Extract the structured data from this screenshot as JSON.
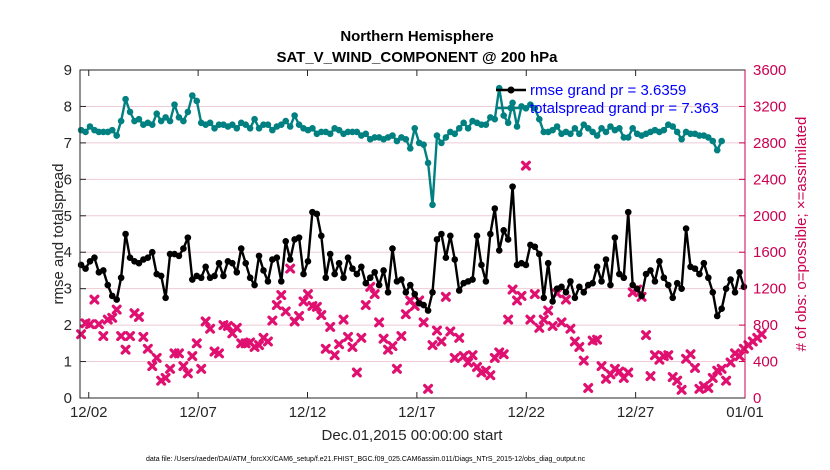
{
  "chart_data": {
    "type": "line",
    "title": "Northern Hemisphere",
    "subtitle": "SAT_V_WIND_COMPONENT @ 200 hPa",
    "xlabel": "Dec.01,2015 00:00:00 start",
    "ylabel_left": "rmse and totalspread",
    "ylabel_right": "# of obs: o=possible; ×=assimilated",
    "footnote": "data file: /Users/raeder/DAI/ATM_forcXX/CAM6_setup/f.e21.FHIST_BGC.f09_025.CAM6assim.011/Diags_NTrS_2015-12/obs_diag_output.nc",
    "xlim": [
      0.6,
      31.0
    ],
    "ylim_left": [
      0,
      9
    ],
    "ylim_right": [
      0,
      3600
    ],
    "x_ticks": [
      1,
      6,
      11,
      16,
      21,
      26,
      31
    ],
    "x_tick_labels": [
      "12/02",
      "12/07",
      "12/12",
      "12/17",
      "12/22",
      "12/27",
      "01/01"
    ],
    "y_ticks_left": [
      "0",
      "1",
      "2",
      "3",
      "4",
      "5",
      "6",
      "7",
      "8",
      "9"
    ],
    "y_ticks_right": [
      "0",
      "400",
      "800",
      "1200",
      "1600",
      "2000",
      "2400",
      "2800",
      "3200",
      "3600"
    ],
    "legend": [
      {
        "label": "rmse grand pr = 3.6359",
        "color": "#000000"
      },
      {
        "label": "totalspread grand pr = 7.363",
        "color": "#008080"
      }
    ],
    "series": [
      {
        "name": "rmse",
        "axis": "left",
        "color": "#000000",
        "values": [
          3.65,
          3.55,
          3.75,
          3.85,
          3.45,
          3.5,
          3.1,
          2.8,
          2.7,
          3.3,
          4.5,
          3.85,
          3.75,
          3.7,
          3.8,
          3.85,
          4,
          3.4,
          3.35,
          2.75,
          3.95,
          3.95,
          3.9,
          4.1,
          4.4,
          3.25,
          3.35,
          3.3,
          3.6,
          3.3,
          3.35,
          3.7,
          3.35,
          3.75,
          3.7,
          3.45,
          4.1,
          3.7,
          3.3,
          3.1,
          3.9,
          3.5,
          3.2,
          3.8,
          3.85,
          3.2,
          4.3,
          3.8,
          4.35,
          4.4,
          3.4,
          3.75,
          5.1,
          5.05,
          4.45,
          3.3,
          3.95,
          3.4,
          3.7,
          3.3,
          3.85,
          3.55,
          3.4,
          3.6,
          3.15,
          3.3,
          3.45,
          3.1,
          3.5,
          2.9,
          4.1,
          3.2,
          3.25,
          2.9,
          3.1,
          2.85,
          2.6,
          2.55,
          2.4,
          2.9,
          4.35,
          4.5,
          3.85,
          4.45,
          3.8,
          2.95,
          3.15,
          3.2,
          3.25,
          4.45,
          3.65,
          3.2,
          4.5,
          5.2,
          4.05,
          4.6,
          4.35,
          5.8,
          3.65,
          3.7,
          3.65,
          4.2,
          4.15,
          3.95,
          2.75,
          3.7,
          2.65,
          3,
          3.05,
          2.9,
          3.2,
          2.75,
          3.05,
          2.9,
          3.1,
          3.15,
          3.6,
          3.2,
          3.8,
          3.1,
          4.4,
          3.4,
          3.3,
          5.1,
          3.1,
          3,
          2.8,
          3.4,
          3.5,
          3.2,
          3.75,
          3.3,
          3.1,
          2.75,
          3.15,
          3,
          4.65,
          3.6,
          3.55,
          3.4,
          3.7,
          3.3,
          2.9,
          2.25,
          2.45,
          3,
          3.25,
          2.9,
          3.45,
          3.05
        ]
      },
      {
        "name": "totalspread",
        "axis": "left",
        "color": "#008080",
        "values": [
          7.35,
          7.3,
          7.45,
          7.35,
          7.3,
          7.3,
          7.3,
          7.35,
          7.2,
          7.6,
          8.2,
          7.85,
          7.6,
          7.65,
          7.5,
          7.55,
          7.5,
          7.8,
          7.6,
          7.7,
          7.6,
          8.05,
          7.7,
          7.6,
          7.85,
          8.3,
          8.15,
          7.55,
          7.5,
          7.55,
          7.4,
          7.5,
          7.5,
          7.45,
          7.5,
          7.4,
          7.55,
          7.5,
          7.4,
          7.65,
          7.4,
          7.5,
          7.5,
          7.35,
          7.45,
          7.5,
          7.6,
          7.45,
          7.75,
          7.5,
          7.4,
          7.35,
          7.4,
          7.25,
          7.3,
          7.3,
          7.25,
          7.4,
          7.35,
          7.25,
          7.3,
          7.3,
          7.3,
          7.2,
          7.25,
          7.1,
          7.15,
          7.15,
          7.1,
          7.15,
          7.2,
          7.05,
          7.15,
          7.1,
          6.85,
          7.4,
          7,
          6.95,
          6.45,
          5.3,
          7.2,
          7,
          7.15,
          7.3,
          7.25,
          7.4,
          7.55,
          7.4,
          7.6,
          7.55,
          7.5,
          7.5,
          7.7,
          7.65,
          8.5,
          7.75,
          7.55,
          8.1,
          7.45,
          8,
          7.95,
          8.05,
          7.95,
          7.65,
          7.3,
          7.3,
          7.35,
          7.45,
          7.25,
          7.3,
          7.25,
          7.4,
          7.25,
          7.5,
          7.4,
          7.3,
          7.2,
          7.4,
          7.3,
          7.45,
          7.35,
          7.4,
          7.15,
          7.15,
          7.4,
          7.25,
          7.2,
          7.25,
          7.3,
          7.35,
          7.3,
          7.35,
          7.5,
          7.45,
          7.3,
          7.1,
          7.3,
          7.25,
          7.25,
          7.2,
          7.2,
          7.15,
          7.05,
          6.8,
          7.05
        ]
      },
      {
        "name": "obs_assimilated",
        "axis": "right",
        "marker": "x",
        "color": "#e01070",
        "values": [
          700,
          820,
          810,
          1080,
          810,
          680,
          860,
          880,
          970,
          680,
          530,
          680,
          930,
          890,
          670,
          540,
          350,
          440,
          190,
          220,
          320,
          490,
          490,
          350,
          270,
          460,
          600,
          320,
          840,
          760,
          510,
          490,
          800,
          790,
          710,
          770,
          600,
          600,
          610,
          560,
          580,
          660,
          620,
          850,
          1020,
          1130,
          950,
          1420,
          840,
          900,
          1060,
          1140,
          1010,
          1000,
          910,
          540,
          780,
          470,
          590,
          860,
          670,
          560,
          280,
          660,
          1020,
          1220,
          1140,
          830,
          650,
          530,
          570,
          320,
          680,
          920,
          1070,
          1010,
          1070,
          830,
          100,
          580,
          740,
          620,
          1110,
          730,
          440,
          660,
          460,
          390,
          470,
          340,
          280,
          300,
          250,
          440,
          500,
          480,
          860,
          1190,
          1070,
          1120,
          2550,
          860,
          1140,
          770,
          860,
          960,
          790,
          1150,
          830,
          1080,
          760,
          620,
          560,
          410,
          110,
          630,
          640,
          350,
          210,
          260,
          320,
          290,
          220,
          280,
          1160,
          1190,
          1110,
          690,
          240,
          470,
          420,
          460,
          470,
          230,
          190,
          90,
          430,
          480,
          330,
          100,
          130,
          110,
          220,
          300,
          320,
          190,
          390,
          490,
          460,
          540,
          580,
          620,
          660,
          700
        ]
      }
    ]
  }
}
